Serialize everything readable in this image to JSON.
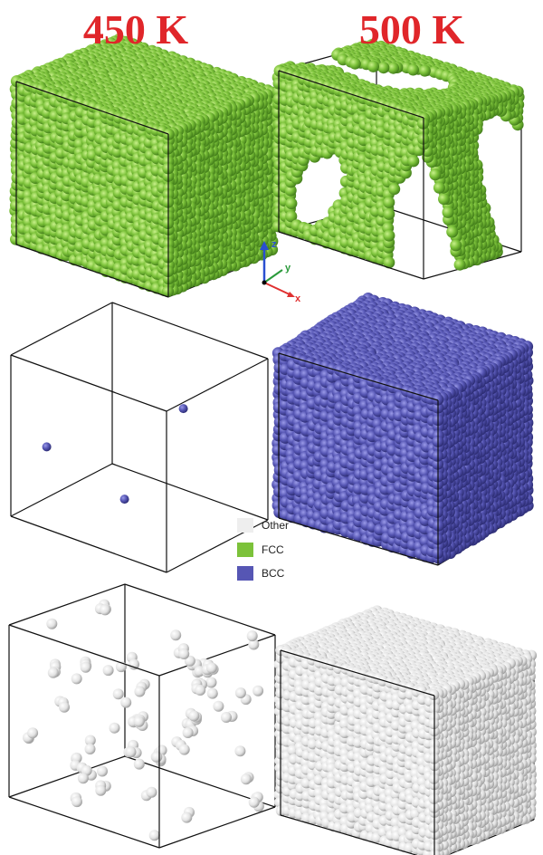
{
  "columns": [
    {
      "title": "450 K"
    },
    {
      "title": "500 K"
    }
  ],
  "legend": {
    "items": [
      {
        "label": "Other"
      },
      {
        "label": "FCC"
      },
      {
        "label": "BCC"
      }
    ]
  },
  "axes_triad": {
    "x": "x",
    "y": "y",
    "z": "z"
  }
}
